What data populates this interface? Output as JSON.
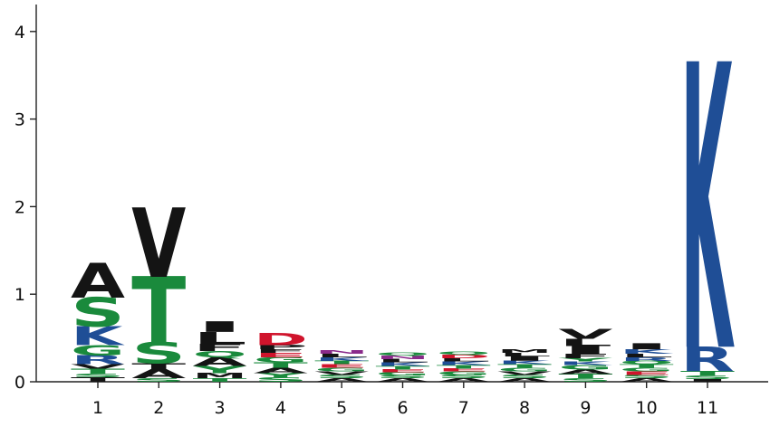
{
  "chart_data": {
    "type": "sequence-logo",
    "title": "",
    "xlabel": "",
    "ylabel": "",
    "ylim": [
      0,
      4.2
    ],
    "y_ticks": [
      0,
      1,
      2,
      3,
      4
    ],
    "colors": {
      "hydrophobic": "#141414",
      "polar": "#1a8a3c",
      "basic": "#1f4e96",
      "acidic": "#d0142c",
      "neutral": "#8a2a8a"
    },
    "positions": [
      {
        "position": "1",
        "letters": [
          {
            "letter": "T",
            "height": 0.05,
            "color": "#141414"
          },
          {
            "letter": "S",
            "height": 0.04,
            "color": "#1a8a3c"
          },
          {
            "letter": "T",
            "height": 0.06,
            "color": "#1a8a3c"
          },
          {
            "letter": "V",
            "height": 0.05,
            "color": "#141414"
          },
          {
            "letter": "R",
            "height": 0.1,
            "color": "#1f4e96"
          },
          {
            "letter": "G",
            "height": 0.12,
            "color": "#1a8a3c"
          },
          {
            "letter": "K",
            "height": 0.21,
            "color": "#1f4e96"
          },
          {
            "letter": "S",
            "height": 0.33,
            "color": "#1a8a3c"
          },
          {
            "letter": "A",
            "height": 0.39,
            "color": "#141414"
          }
        ]
      },
      {
        "position": "2",
        "letters": [
          {
            "letter": "S",
            "height": 0.04,
            "color": "#1a8a3c"
          },
          {
            "letter": "A",
            "height": 0.1,
            "color": "#141414"
          },
          {
            "letter": "T",
            "height": 0.07,
            "color": "#141414"
          },
          {
            "letter": "S",
            "height": 0.24,
            "color": "#1a8a3c"
          },
          {
            "letter": "T",
            "height": 0.75,
            "color": "#1a8a3c"
          },
          {
            "letter": "V",
            "height": 0.78,
            "color": "#141414"
          }
        ]
      },
      {
        "position": "3",
        "letters": [
          {
            "letter": "T",
            "height": 0.04,
            "color": "#1a8a3c"
          },
          {
            "letter": "M",
            "height": 0.06,
            "color": "#141414"
          },
          {
            "letter": "Y",
            "height": 0.08,
            "color": "#1a8a3c"
          },
          {
            "letter": "A",
            "height": 0.1,
            "color": "#141414"
          },
          {
            "letter": "Q",
            "height": 0.07,
            "color": "#1a8a3c"
          },
          {
            "letter": "F",
            "height": 0.08,
            "color": "#141414"
          },
          {
            "letter": "L",
            "height": 0.14,
            "color": "#141414"
          },
          {
            "letter": "I",
            "height": 0.12,
            "color": "#141414"
          }
        ]
      },
      {
        "position": "4",
        "letters": [
          {
            "letter": "S",
            "height": 0.05,
            "color": "#1a8a3c"
          },
          {
            "letter": "Y",
            "height": 0.05,
            "color": "#1a8a3c"
          },
          {
            "letter": "A",
            "height": 0.06,
            "color": "#141414"
          },
          {
            "letter": "T",
            "height": 0.06,
            "color": "#1a8a3c"
          },
          {
            "letter": "G",
            "height": 0.06,
            "color": "#1a8a3c"
          },
          {
            "letter": "E",
            "height": 0.05,
            "color": "#d0142c"
          },
          {
            "letter": "F",
            "height": 0.04,
            "color": "#141414"
          },
          {
            "letter": "P",
            "height": 0.05,
            "color": "#141414"
          },
          {
            "letter": "D",
            "height": 0.14,
            "color": "#d0142c"
          }
        ]
      },
      {
        "position": "5",
        "letters": [
          {
            "letter": "A",
            "height": 0.04,
            "color": "#141414"
          },
          {
            "letter": "S",
            "height": 0.04,
            "color": "#1a8a3c"
          },
          {
            "letter": "V",
            "height": 0.04,
            "color": "#141414"
          },
          {
            "letter": "G",
            "height": 0.04,
            "color": "#1a8a3c"
          },
          {
            "letter": "E",
            "height": 0.04,
            "color": "#d0142c"
          },
          {
            "letter": "T",
            "height": 0.04,
            "color": "#1a8a3c"
          },
          {
            "letter": "K",
            "height": 0.04,
            "color": "#1f4e96"
          },
          {
            "letter": "L",
            "height": 0.04,
            "color": "#141414"
          },
          {
            "letter": "N",
            "height": 0.04,
            "color": "#8a2a8a"
          }
        ]
      },
      {
        "position": "6",
        "letters": [
          {
            "letter": "A",
            "height": 0.04,
            "color": "#141414"
          },
          {
            "letter": "S",
            "height": 0.03,
            "color": "#1a8a3c"
          },
          {
            "letter": "G",
            "height": 0.04,
            "color": "#1a8a3c"
          },
          {
            "letter": "E",
            "height": 0.03,
            "color": "#d0142c"
          },
          {
            "letter": "T",
            "height": 0.04,
            "color": "#1a8a3c"
          },
          {
            "letter": "K",
            "height": 0.04,
            "color": "#1f4e96"
          },
          {
            "letter": "L",
            "height": 0.04,
            "color": "#141414"
          },
          {
            "letter": "N",
            "height": 0.04,
            "color": "#8a2a8a"
          },
          {
            "letter": "Q",
            "height": 0.03,
            "color": "#1a8a3c"
          }
        ]
      },
      {
        "position": "7",
        "letters": [
          {
            "letter": "A",
            "height": 0.04,
            "color": "#141414"
          },
          {
            "letter": "S",
            "height": 0.04,
            "color": "#1a8a3c"
          },
          {
            "letter": "G",
            "height": 0.04,
            "color": "#1a8a3c"
          },
          {
            "letter": "E",
            "height": 0.03,
            "color": "#d0142c"
          },
          {
            "letter": "T",
            "height": 0.04,
            "color": "#1a8a3c"
          },
          {
            "letter": "K",
            "height": 0.04,
            "color": "#1f4e96"
          },
          {
            "letter": "L",
            "height": 0.04,
            "color": "#141414"
          },
          {
            "letter": "D",
            "height": 0.04,
            "color": "#d0142c"
          },
          {
            "letter": "Q",
            "height": 0.03,
            "color": "#1a8a3c"
          }
        ]
      },
      {
        "position": "8",
        "letters": [
          {
            "letter": "A",
            "height": 0.04,
            "color": "#141414"
          },
          {
            "letter": "S",
            "height": 0.04,
            "color": "#1a8a3c"
          },
          {
            "letter": "V",
            "height": 0.04,
            "color": "#141414"
          },
          {
            "letter": "G",
            "height": 0.04,
            "color": "#1a8a3c"
          },
          {
            "letter": "T",
            "height": 0.04,
            "color": "#1a8a3c"
          },
          {
            "letter": "K",
            "height": 0.04,
            "color": "#1f4e96"
          },
          {
            "letter": "I",
            "height": 0.05,
            "color": "#141414"
          },
          {
            "letter": "L",
            "height": 0.04,
            "color": "#141414"
          },
          {
            "letter": "M",
            "height": 0.04,
            "color": "#141414"
          }
        ]
      },
      {
        "position": "9",
        "letters": [
          {
            "letter": "S",
            "height": 0.04,
            "color": "#1a8a3c"
          },
          {
            "letter": "T",
            "height": 0.05,
            "color": "#1a8a3c"
          },
          {
            "letter": "A",
            "height": 0.05,
            "color": "#141414"
          },
          {
            "letter": "G",
            "height": 0.05,
            "color": "#1a8a3c"
          },
          {
            "letter": "K",
            "height": 0.04,
            "color": "#1f4e96"
          },
          {
            "letter": "Y",
            "height": 0.04,
            "color": "#1a8a3c"
          },
          {
            "letter": "F",
            "height": 0.05,
            "color": "#141414"
          },
          {
            "letter": "I",
            "height": 0.09,
            "color": "#141414"
          },
          {
            "letter": "L",
            "height": 0.08,
            "color": "#141414"
          },
          {
            "letter": "V",
            "height": 0.11,
            "color": "#141414"
          }
        ]
      },
      {
        "position": "10",
        "letters": [
          {
            "letter": "A",
            "height": 0.04,
            "color": "#141414"
          },
          {
            "letter": "S",
            "height": 0.04,
            "color": "#1a8a3c"
          },
          {
            "letter": "E",
            "height": 0.04,
            "color": "#d0142c"
          },
          {
            "letter": "G",
            "height": 0.04,
            "color": "#1a8a3c"
          },
          {
            "letter": "T",
            "height": 0.04,
            "color": "#1a8a3c"
          },
          {
            "letter": "Q",
            "height": 0.04,
            "color": "#1a8a3c"
          },
          {
            "letter": "R",
            "height": 0.04,
            "color": "#1f4e96"
          },
          {
            "letter": "L",
            "height": 0.04,
            "color": "#141414"
          },
          {
            "letter": "K",
            "height": 0.05,
            "color": "#1f4e96"
          },
          {
            "letter": "I",
            "height": 0.07,
            "color": "#141414"
          }
        ]
      },
      {
        "position": "11",
        "letters": [
          {
            "letter": "I",
            "height": 0.03,
            "color": "#141414"
          },
          {
            "letter": "S",
            "height": 0.04,
            "color": "#1a8a3c"
          },
          {
            "letter": "T",
            "height": 0.05,
            "color": "#1a8a3c"
          },
          {
            "letter": "R",
            "height": 0.28,
            "color": "#1f4e96"
          },
          {
            "letter": "K",
            "height": 3.22,
            "color": "#1f4e96"
          }
        ]
      }
    ]
  }
}
